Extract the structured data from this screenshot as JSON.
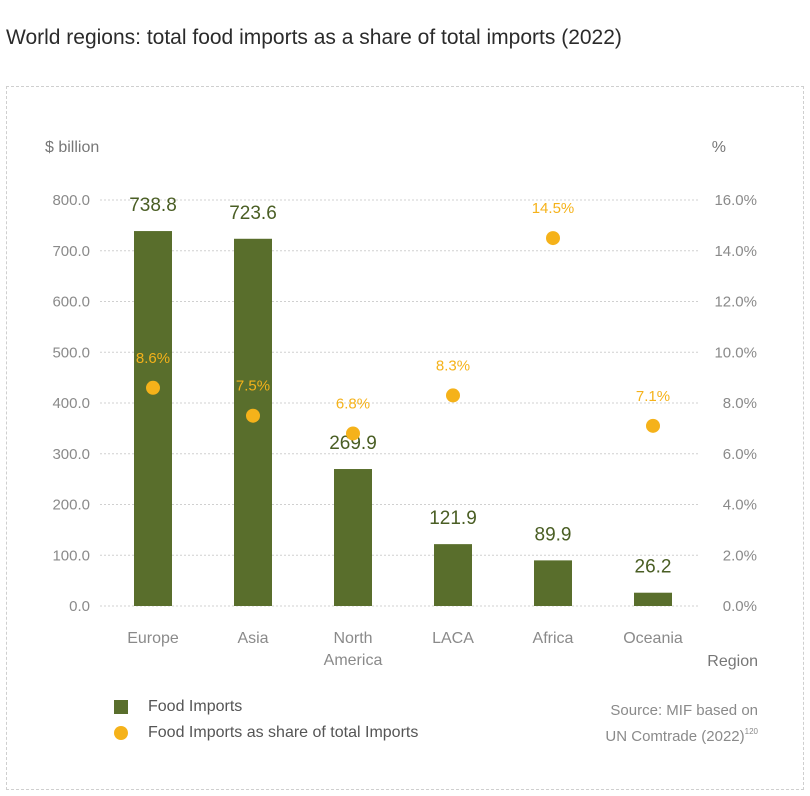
{
  "title": "World regions: total food imports as a share of total imports (2022)",
  "colors": {
    "bar": "#596e2c",
    "dot": "#f5b21a",
    "grid": "#d0d0d0"
  },
  "legend": {
    "food_imports": "Food Imports",
    "share": "Food Imports as share of total Imports"
  },
  "source": {
    "line1": "Source: MIF based on",
    "line2": "UN Comtrade (2022)",
    "ref": "120"
  },
  "chart_data": {
    "type": "bar",
    "categories": [
      "Europe",
      "Asia",
      "North America",
      "LACA",
      "Africa",
      "Oceania"
    ],
    "category_lines": [
      [
        "Europe"
      ],
      [
        "Asia"
      ],
      [
        "North",
        "America"
      ],
      [
        "LACA"
      ],
      [
        "Africa"
      ],
      [
        "Oceania"
      ]
    ],
    "series": [
      {
        "name": "Food Imports",
        "type": "bar",
        "axis": "left",
        "values": [
          738.8,
          723.6,
          269.9,
          121.9,
          89.9,
          26.2
        ],
        "labels": [
          "738.8",
          "723.6",
          "269.9",
          "121.9",
          "89.9",
          "26.2"
        ]
      },
      {
        "name": "Food Imports as share of total Imports",
        "type": "scatter",
        "axis": "right",
        "values": [
          8.6,
          7.5,
          6.8,
          8.3,
          14.5,
          7.1
        ],
        "labels": [
          "8.6%",
          "7.5%",
          "6.8%",
          "8.3%",
          "14.5%",
          "7.1%"
        ]
      }
    ],
    "y_left": {
      "label": "$ billion",
      "range": [
        0,
        800
      ],
      "ticks": [
        "0.0",
        "100.0",
        "200.0",
        "300.0",
        "400.0",
        "500.0",
        "600.0",
        "700.0",
        "800.0"
      ]
    },
    "y_right": {
      "label": "%",
      "range": [
        0,
        16
      ],
      "ticks": [
        "0.0%",
        "2.0%",
        "4.0%",
        "6.0%",
        "8.0%",
        "10.0%",
        "12.0%",
        "14.0%",
        "16.0%"
      ]
    },
    "xlabel": "Region",
    "grid": true
  }
}
